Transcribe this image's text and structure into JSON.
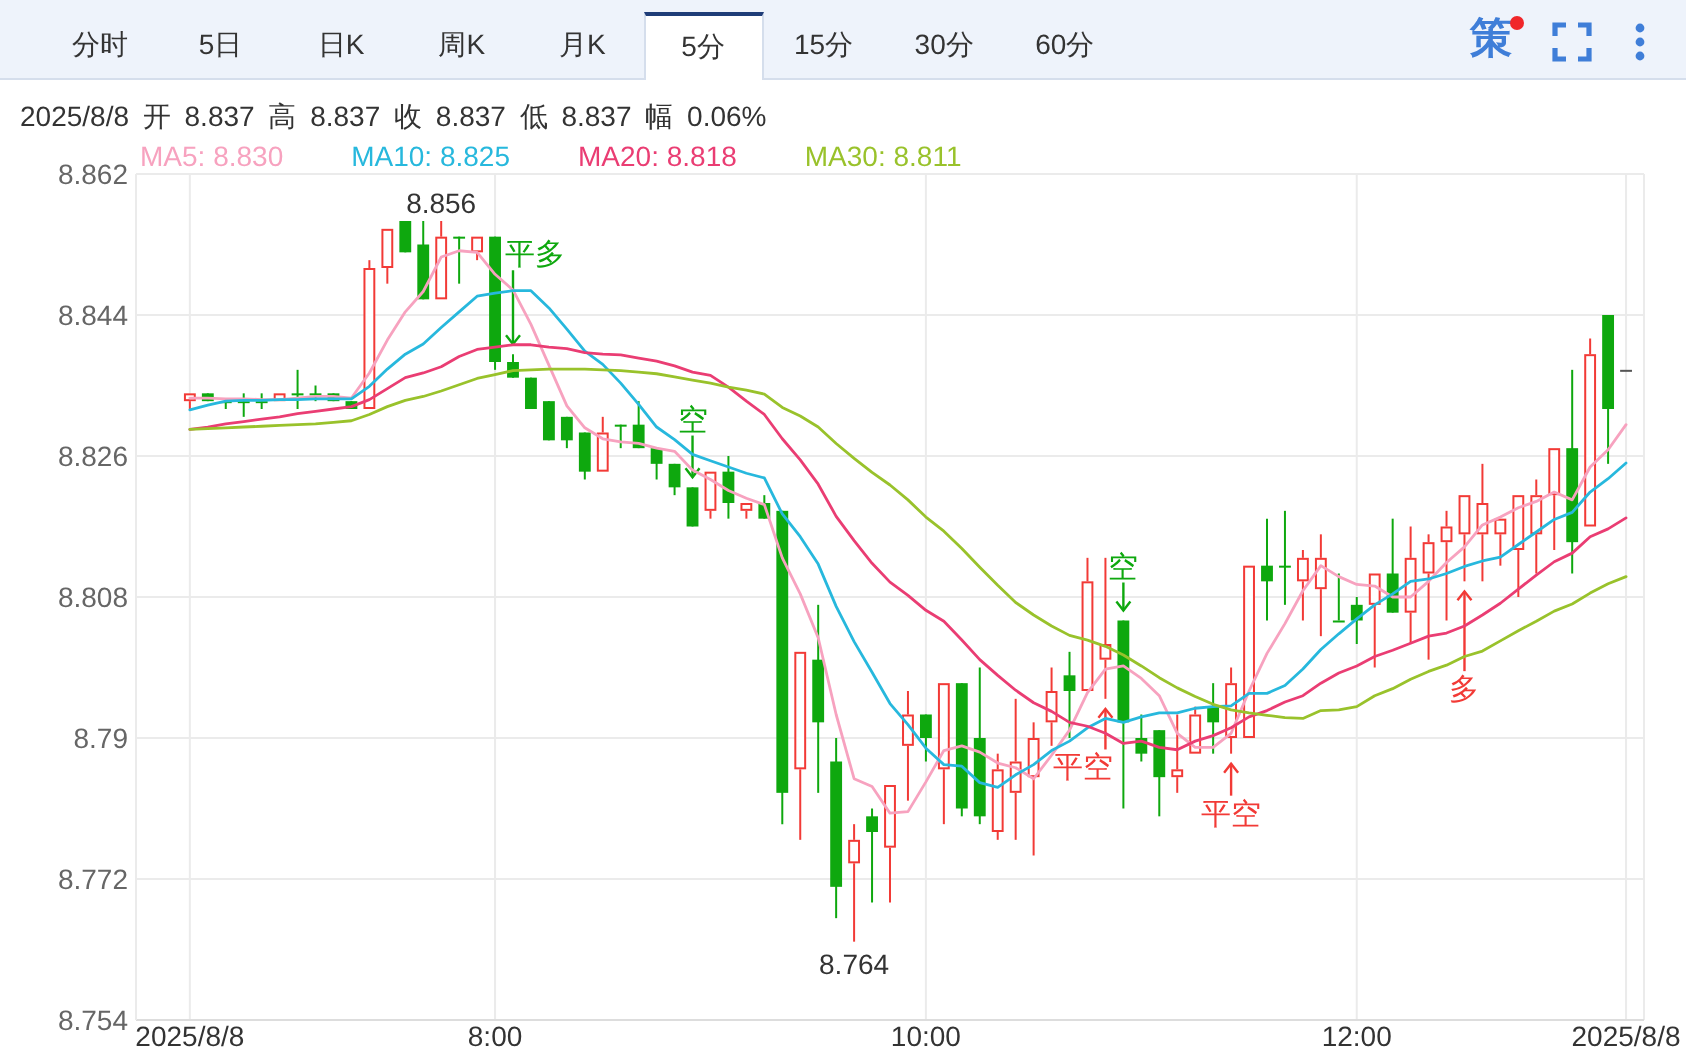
{
  "chart_data": {
    "type": "candlestick",
    "subtitle": "2025/8/8 开 8.837 高 8.837 收 8.837 低 8.837 幅 0.06%",
    "x": [
      "2025-08-08T06:35",
      "2025-08-08T06:40",
      "2025-08-08T06:45",
      "2025-08-08T06:50",
      "2025-08-08T06:55",
      "2025-08-08T07:00",
      "2025-08-08T07:05",
      "2025-08-08T07:10",
      "2025-08-08T07:15",
      "2025-08-08T07:20",
      "2025-08-08T07:25",
      "2025-08-08T07:30",
      "2025-08-08T07:35",
      "2025-08-08T07:40",
      "2025-08-08T07:45",
      "2025-08-08T07:50",
      "2025-08-08T07:55",
      "2025-08-08T08:00",
      "2025-08-08T08:05",
      "2025-08-08T08:10",
      "2025-08-08T08:15",
      "2025-08-08T08:20",
      "2025-08-08T08:25",
      "2025-08-08T08:30",
      "2025-08-08T08:35",
      "2025-08-08T08:40",
      "2025-08-08T08:45",
      "2025-08-08T08:50",
      "2025-08-08T08:55",
      "2025-08-08T09:00",
      "2025-08-08T09:05",
      "2025-08-08T09:10",
      "2025-08-08T09:15",
      "2025-08-08T09:20",
      "2025-08-08T09:25",
      "2025-08-08T09:30",
      "2025-08-08T09:35",
      "2025-08-08T09:40",
      "2025-08-08T09:45",
      "2025-08-08T09:50",
      "2025-08-08T09:55",
      "2025-08-08T10:00",
      "2025-08-08T10:05",
      "2025-08-08T10:10",
      "2025-08-08T10:15",
      "2025-08-08T10:20",
      "2025-08-08T10:25",
      "2025-08-08T10:30",
      "2025-08-08T10:35",
      "2025-08-08T10:40",
      "2025-08-08T10:45",
      "2025-08-08T10:50",
      "2025-08-08T10:55",
      "2025-08-08T11:00",
      "2025-08-08T11:05",
      "2025-08-08T11:10",
      "2025-08-08T11:15",
      "2025-08-08T11:20",
      "2025-08-08T11:25",
      "2025-08-08T11:30",
      "2025-08-08T11:35",
      "2025-08-08T11:40",
      "2025-08-08T11:45",
      "2025-08-08T11:50",
      "2025-08-08T11:55",
      "2025-08-08T12:00",
      "2025-08-08T12:05",
      "2025-08-08T12:10",
      "2025-08-08T12:15",
      "2025-08-08T12:20",
      "2025-08-08T12:25",
      "2025-08-08T12:30",
      "2025-08-08T12:35",
      "2025-08-08T12:40",
      "2025-08-08T12:45",
      "2025-08-08T12:50",
      "2025-08-08T12:55",
      "2025-08-08T13:00",
      "2025-08-08T13:05",
      "2025-08-08T13:10",
      "2025-08-08T13:15"
    ],
    "ohlc": [
      [
        8.833,
        8.834,
        8.832,
        8.834
      ],
      [
        8.834,
        8.834,
        8.833,
        8.833
      ],
      [
        8.833,
        8.833,
        8.832,
        8.833
      ],
      [
        8.833,
        8.834,
        8.831,
        8.833
      ],
      [
        8.833,
        8.834,
        8.832,
        8.833
      ],
      [
        8.833,
        8.834,
        8.833,
        8.834
      ],
      [
        8.834,
        8.837,
        8.832,
        8.834
      ],
      [
        8.834,
        8.835,
        8.833,
        8.834
      ],
      [
        8.834,
        8.834,
        8.833,
        8.833
      ],
      [
        8.833,
        8.833,
        8.832,
        8.832
      ],
      [
        8.832,
        8.851,
        8.832,
        8.85
      ],
      [
        8.85,
        8.855,
        8.848,
        8.855
      ],
      [
        8.856,
        8.856,
        8.852,
        8.852
      ],
      [
        8.853,
        8.856,
        8.846,
        8.846
      ],
      [
        8.846,
        8.856,
        8.846,
        8.854
      ],
      [
        8.854,
        8.854,
        8.848,
        8.854
      ],
      [
        8.852,
        8.854,
        8.851,
        8.854
      ],
      [
        8.854,
        8.854,
        8.837,
        8.838
      ],
      [
        8.838,
        8.839,
        8.836,
        8.836
      ],
      [
        8.836,
        8.836,
        8.832,
        8.832
      ],
      [
        8.833,
        8.833,
        8.828,
        8.828
      ],
      [
        8.831,
        8.831,
        8.827,
        8.828
      ],
      [
        8.829,
        8.829,
        8.823,
        8.824
      ],
      [
        8.824,
        8.831,
        8.824,
        8.829
      ],
      [
        8.83,
        8.83,
        8.827,
        8.83
      ],
      [
        8.83,
        8.833,
        8.827,
        8.827
      ],
      [
        8.827,
        8.827,
        8.823,
        8.825
      ],
      [
        8.825,
        8.825,
        8.821,
        8.822
      ],
      [
        8.822,
        8.822,
        8.817,
        8.817
      ],
      [
        8.819,
        8.824,
        8.818,
        8.824
      ],
      [
        8.824,
        8.826,
        8.818,
        8.82
      ],
      [
        8.819,
        8.82,
        8.818,
        8.82
      ],
      [
        8.82,
        8.821,
        8.818,
        8.818
      ],
      [
        8.819,
        8.819,
        8.779,
        8.783
      ],
      [
        8.786,
        8.801,
        8.777,
        8.801
      ],
      [
        8.8,
        8.807,
        8.783,
        8.792
      ],
      [
        8.787,
        8.79,
        8.767,
        8.771
      ],
      [
        8.774,
        8.779,
        8.764,
        8.777
      ],
      [
        8.78,
        8.781,
        8.769,
        8.778
      ],
      [
        8.776,
        8.784,
        8.769,
        8.784
      ],
      [
        8.789,
        8.796,
        8.782,
        8.793
      ],
      [
        8.793,
        8.793,
        8.787,
        8.79
      ],
      [
        8.786,
        8.797,
        8.779,
        8.797
      ],
      [
        8.797,
        8.797,
        8.78,
        8.781
      ],
      [
        8.79,
        8.799,
        8.779,
        8.78
      ],
      [
        8.778,
        8.788,
        8.777,
        8.786
      ],
      [
        8.783,
        8.795,
        8.777,
        8.787
      ],
      [
        8.785,
        8.792,
        8.775,
        8.79
      ],
      [
        8.792,
        8.799,
        8.789,
        8.796
      ],
      [
        8.798,
        8.801,
        8.79,
        8.796
      ],
      [
        8.796,
        8.813,
        8.796,
        8.81
      ],
      [
        8.8,
        8.813,
        8.795,
        8.802
      ],
      [
        8.805,
        8.805,
        8.781,
        8.792
      ],
      [
        8.79,
        8.793,
        8.787,
        8.788
      ],
      [
        8.791,
        8.791,
        8.78,
        8.785
      ],
      [
        8.785,
        8.793,
        8.783,
        8.786
      ],
      [
        8.788,
        8.794,
        8.788,
        8.793
      ],
      [
        8.794,
        8.797,
        8.788,
        8.792
      ],
      [
        8.79,
        8.799,
        8.788,
        8.797
      ],
      [
        8.79,
        8.812,
        8.79,
        8.812
      ],
      [
        8.812,
        8.818,
        8.805,
        8.81
      ],
      [
        8.812,
        8.819,
        8.807,
        8.812
      ],
      [
        8.81,
        8.814,
        8.805,
        8.813
      ],
      [
        8.809,
        8.816,
        8.803,
        8.813
      ],
      [
        8.805,
        8.811,
        8.805,
        8.805
      ],
      [
        8.807,
        8.808,
        8.802,
        8.805
      ],
      [
        8.807,
        8.811,
        8.799,
        8.811
      ],
      [
        8.811,
        8.818,
        8.806,
        8.806
      ],
      [
        8.806,
        8.817,
        8.802,
        8.813
      ],
      [
        8.811,
        8.816,
        8.8,
        8.815
      ],
      [
        8.815,
        8.819,
        8.805,
        8.817
      ],
      [
        8.816,
        8.821,
        8.81,
        8.821
      ],
      [
        8.816,
        8.825,
        8.81,
        8.82
      ],
      [
        8.816,
        8.818,
        8.812,
        8.818
      ],
      [
        8.814,
        8.821,
        8.808,
        8.821
      ],
      [
        8.816,
        8.823,
        8.811,
        8.821
      ],
      [
        8.821,
        8.827,
        8.814,
        8.827
      ],
      [
        8.827,
        8.837,
        8.811,
        8.815
      ],
      [
        8.817,
        8.841,
        8.817,
        8.839
      ],
      [
        8.844,
        8.844,
        8.825,
        8.832
      ],
      [
        8.837,
        8.837,
        8.837,
        8.837
      ]
    ],
    "colors": [
      "#f23a36",
      "#0ea80e",
      "#0ea80e",
      "#0ea80e",
      "#0ea80e",
      "#f23a36",
      "#0ea80e",
      "#0ea80e",
      "#0ea80e",
      "#0ea80e",
      "#f23a36",
      "#f23a36",
      "#0ea80e",
      "#0ea80e",
      "#f23a36",
      "#0ea80e",
      "#f23a36",
      "#0ea80e",
      "#0ea80e",
      "#0ea80e",
      "#0ea80e",
      "#0ea80e",
      "#0ea80e",
      "#f23a36",
      "#0ea80e",
      "#0ea80e",
      "#0ea80e",
      "#0ea80e",
      "#0ea80e",
      "#f23a36",
      "#0ea80e",
      "#f23a36",
      "#0ea80e",
      "#0ea80e",
      "#f23a36",
      "#0ea80e",
      "#0ea80e",
      "#f23a36",
      "#0ea80e",
      "#f23a36",
      "#f23a36",
      "#0ea80e",
      "#f23a36",
      "#0ea80e",
      "#0ea80e",
      "#f23a36",
      "#f23a36",
      "#f23a36",
      "#f23a36",
      "#0ea80e",
      "#f23a36",
      "#f23a36",
      "#0ea80e",
      "#0ea80e",
      "#0ea80e",
      "#f23a36",
      "#f23a36",
      "#0ea80e",
      "#f23a36",
      "#f23a36",
      "#0ea80e",
      "#0ea80e",
      "#f23a36",
      "#f23a36",
      "#0ea80e",
      "#0ea80e",
      "#f23a36",
      "#0ea80e",
      "#f23a36",
      "#f23a36",
      "#f23a36",
      "#f23a36",
      "#f23a36",
      "#f23a36",
      "#f23a36",
      "#f23a36",
      "#f23a36",
      "#0ea80e",
      "#f23a36",
      "#0ea80e",
      "#555555"
    ],
    "series": [
      {
        "name": "MA5: 8.830",
        "type": "line",
        "color": "#f7a2bf",
        "values": [
          8.8334,
          8.8334,
          8.8333,
          8.8333,
          8.8332,
          8.8332,
          8.8334,
          8.8336,
          8.8336,
          8.8334,
          8.8366,
          8.8408,
          8.8444,
          8.847,
          8.8514,
          8.8522,
          8.852,
          8.8492,
          8.8472,
          8.8428,
          8.8376,
          8.8324,
          8.8296,
          8.8282,
          8.8278,
          8.8276,
          8.827,
          8.8266,
          8.8242,
          8.823,
          8.8216,
          8.8206,
          8.8198,
          8.813,
          8.8084,
          8.8028,
          8.793,
          8.7848,
          8.7838,
          8.7804,
          8.7806,
          8.7844,
          8.7884,
          8.789,
          8.7882,
          8.7868,
          8.7862,
          8.7848,
          8.7878,
          8.791,
          8.7958,
          8.7988,
          8.7992,
          8.7976,
          8.7954,
          8.7906,
          8.7888,
          8.7888,
          8.7906,
          8.796,
          8.8008,
          8.8046,
          8.8088,
          8.812,
          8.8106,
          8.8096,
          8.8094,
          8.808,
          8.808,
          8.81,
          8.8124,
          8.8144,
          8.8172,
          8.8182,
          8.8194,
          8.8202,
          8.8214,
          8.8204,
          8.8246,
          8.8268,
          8.83
        ]
      },
      {
        "name": "MA10: 8.825",
        "type": "line",
        "color": "#27b8dd",
        "values": [
          8.8319,
          8.8325,
          8.833,
          8.8331,
          8.8331,
          8.8332,
          8.8332,
          8.8333,
          8.8333,
          8.8333,
          8.8349,
          8.8371,
          8.839,
          8.8403,
          8.8424,
          8.8444,
          8.8464,
          8.8468,
          8.8471,
          8.8471,
          8.8449,
          8.8422,
          8.8394,
          8.8377,
          8.8353,
          8.8326,
          8.8297,
          8.8281,
          8.8262,
          8.8254,
          8.8246,
          8.8238,
          8.8232,
          8.8186,
          8.8157,
          8.8122,
          8.8068,
          8.8023,
          8.7984,
          8.7944,
          8.7917,
          8.7887,
          8.7866,
          8.7864,
          8.7843,
          8.7837,
          8.7853,
          8.7866,
          8.7884,
          8.7896,
          8.7913,
          8.7925,
          8.792,
          8.7927,
          8.7932,
          8.7932,
          8.7938,
          8.794,
          8.7941,
          8.7957,
          8.7957,
          8.7967,
          8.7988,
          8.8013,
          8.8033,
          8.8052,
          8.807,
          8.8084,
          8.81,
          8.8103,
          8.811,
          8.8119,
          8.8126,
          8.8131,
          8.8147,
          8.8163,
          8.8179,
          8.8188,
          8.8214,
          8.8231,
          8.8251
        ]
      },
      {
        "name": "MA20: 8.818",
        "type": "line",
        "color": "#ea3d73",
        "values": [
          8.8294,
          8.8297,
          8.8301,
          8.8304,
          8.8307,
          8.831,
          8.8314,
          8.8317,
          8.832,
          8.8323,
          8.8332,
          8.8346,
          8.836,
          8.8366,
          8.8374,
          8.8387,
          8.8396,
          8.8399,
          8.8402,
          8.8402,
          8.8399,
          8.8397,
          8.8392,
          8.839,
          8.8389,
          8.8385,
          8.8381,
          8.8375,
          8.8367,
          8.8363,
          8.8348,
          8.833,
          8.8313,
          8.8282,
          8.8255,
          8.8224,
          8.8183,
          8.8152,
          8.8123,
          8.8099,
          8.8082,
          8.8063,
          8.8049,
          8.8025,
          8.8,
          8.798,
          8.7961,
          8.7945,
          8.7934,
          8.792,
          8.7915,
          8.7906,
          8.7893,
          8.7896,
          8.7888,
          8.7885,
          8.7896,
          8.7903,
          8.7913,
          8.7927,
          8.7935,
          8.7946,
          8.7954,
          8.797,
          8.7983,
          8.7992,
          8.8004,
          8.8012,
          8.8021,
          8.803,
          8.8034,
          8.8043,
          8.8057,
          8.8072,
          8.809,
          8.8108,
          8.8125,
          8.8136,
          8.8157,
          8.8167,
          8.8181
        ]
      },
      {
        "name": "MA30: 8.811",
        "type": "line",
        "color": "#99c22b",
        "values": [
          8.8294,
          8.8295,
          8.8296,
          8.8297,
          8.8298,
          8.8299,
          8.83,
          8.8301,
          8.8303,
          8.8305,
          8.8313,
          8.8323,
          8.8331,
          8.8336,
          8.8343,
          8.8351,
          8.8359,
          8.8364,
          8.8369,
          8.837,
          8.8371,
          8.8371,
          8.8371,
          8.837,
          8.8369,
          8.8367,
          8.8365,
          8.8361,
          8.8357,
          8.8353,
          8.8348,
          8.8344,
          8.8339,
          8.8322,
          8.8311,
          8.8297,
          8.8276,
          8.8257,
          8.8239,
          8.8223,
          8.8204,
          8.8182,
          8.8164,
          8.8142,
          8.8118,
          8.8095,
          8.8073,
          8.8057,
          8.8043,
          8.8031,
          8.8025,
          8.8017,
          8.8006,
          8.7992,
          8.7977,
          8.7964,
          8.7953,
          8.7943,
          8.7936,
          8.7932,
          8.7929,
          8.7926,
          8.7925,
          8.7935,
          8.7936,
          8.794,
          8.7954,
          8.7963,
          8.7975,
          8.7985,
          8.7993,
          8.8004,
          8.8011,
          8.8024,
          8.8037,
          8.8049,
          8.8062,
          8.8071,
          8.8085,
          8.8097,
          8.8106
        ]
      }
    ],
    "xlim": [
      "2025-08-08T06:20",
      "2025-08-08T13:20"
    ],
    "xticks": [
      {
        "value": "2025-08-08T06:35",
        "label": "2025/8/8"
      },
      {
        "value": "2025-08-08T08:00",
        "label": "8:00"
      },
      {
        "value": "2025-08-08T10:00",
        "label": "10:00"
      },
      {
        "value": "2025-08-08T12:00",
        "label": "12:00"
      },
      {
        "value": "2025-08-08T13:15",
        "label": "2025/8/8"
      }
    ],
    "ylim": [
      8.754,
      8.862
    ],
    "yticks": [
      8.754,
      8.772,
      8.79,
      8.808,
      8.826,
      8.844,
      8.862
    ],
    "grid": true,
    "legend": "top left",
    "marker": "none",
    "annotations": [
      "分时",
      "5日",
      "日K",
      "周K",
      "月K",
      "5分",
      "15分",
      "30分",
      "60分",
      "策",
      {
        "text": "8.856",
        "x": "2025-08-08T07:45",
        "y": 8.856
      },
      {
        "text": "平多",
        "x": "2025-08-08T08:05",
        "y": 8.839
      },
      {
        "text": "空",
        "x": "2025-08-08T08:55",
        "y": 8.822
      },
      {
        "text": "8.764",
        "x": "2025-08-08T09:40",
        "y": 8.764
      },
      {
        "text": "平空",
        "x": "2025-08-08T10:50",
        "y": 8.795
      },
      {
        "text": "空",
        "x": "2025-08-08T10:55",
        "y": 8.805
      },
      {
        "text": "平空",
        "x": "2025-08-08T11:25",
        "y": 8.788
      },
      {
        "text": "多",
        "x": "2025-08-08T12:30",
        "y": 8.81
      }
    ]
  }
}
